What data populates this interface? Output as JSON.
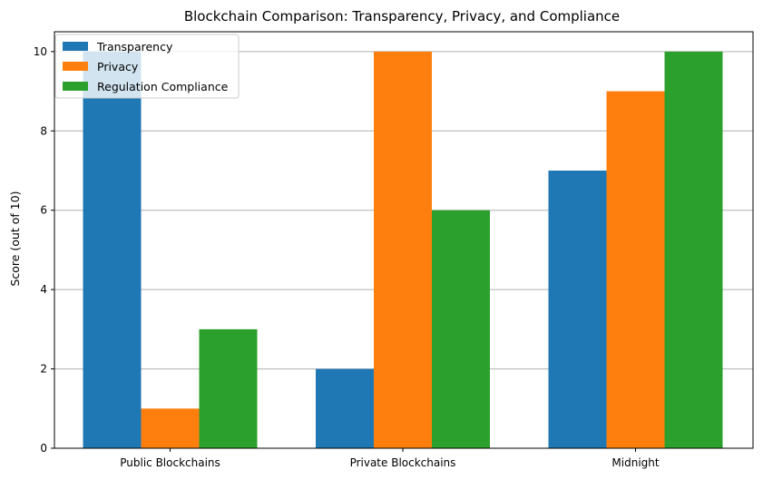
{
  "chart_data": {
    "type": "bar",
    "title": "Blockchain Comparison: Transparency, Privacy, and Compliance",
    "xlabel": "",
    "ylabel": "Score (out of 10)",
    "ylim": [
      0,
      10.5
    ],
    "yticks": [
      0,
      2,
      4,
      6,
      8,
      10
    ],
    "grid": "horizontal",
    "legend_position": "top-left",
    "categories": [
      "Public Blockchains",
      "Private Blockchains",
      "Midnight"
    ],
    "series": [
      {
        "name": "Transparency",
        "color": "#1f77b4",
        "values": [
          10,
          2,
          7
        ]
      },
      {
        "name": "Privacy",
        "color": "#ff7f0e",
        "values": [
          1,
          10,
          9
        ]
      },
      {
        "name": "Regulation Compliance",
        "color": "#2ca02c",
        "values": [
          3,
          6,
          10
        ]
      }
    ]
  }
}
